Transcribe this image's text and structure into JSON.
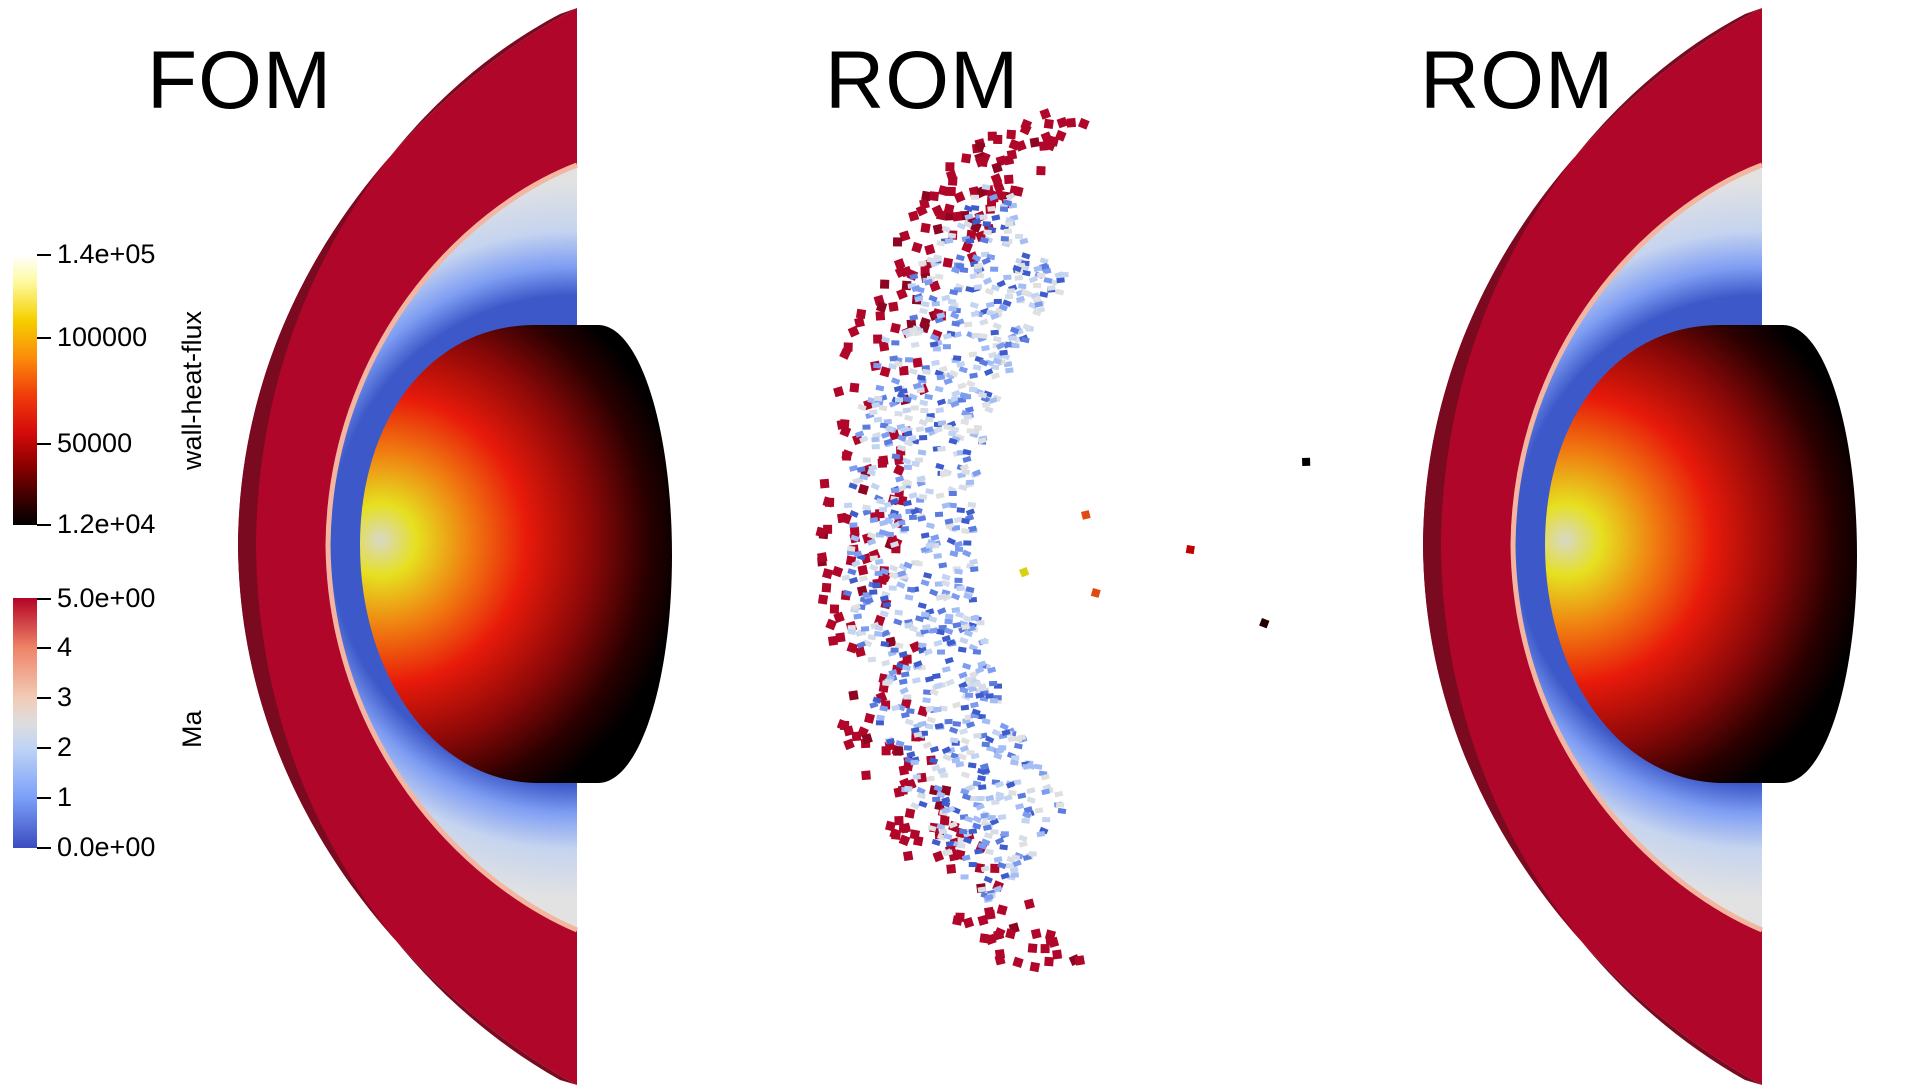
{
  "panels": {
    "left_title": "FOM",
    "middle_title": "ROM",
    "right_title": "ROM"
  },
  "colorbars": {
    "wall_heat_flux": {
      "title": "wall-heat-flux",
      "ticks": [
        "1.4e+05",
        "100000",
        "50000",
        "1.2e+04"
      ]
    },
    "mach": {
      "title": "Ma",
      "ticks": [
        "5.0e+00",
        "4",
        "3",
        "2",
        "1",
        "0.0e+00"
      ]
    }
  },
  "colors": {
    "shock_red": "#b0062a",
    "shock_dark": "#7a0a20",
    "flow_blue": "#3f5ccc",
    "flow_pale": "#dcdcdc"
  }
}
